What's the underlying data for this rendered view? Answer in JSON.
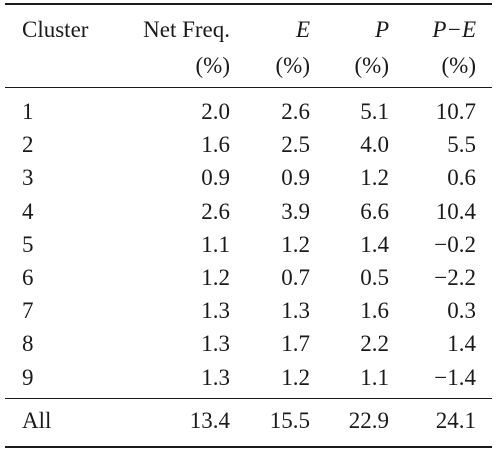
{
  "table": {
    "header_row1": [
      "Cluster",
      "Net Freq.",
      "E",
      "P",
      "P−E"
    ],
    "header_row2": [
      "",
      "(%)",
      "(%)",
      "(%)",
      "(%)"
    ],
    "rows": [
      [
        "1",
        "2.0",
        "2.6",
        "5.1",
        "10.7"
      ],
      [
        "2",
        "1.6",
        "2.5",
        "4.0",
        "5.5"
      ],
      [
        "3",
        "0.9",
        "0.9",
        "1.2",
        "0.6"
      ],
      [
        "4",
        "2.6",
        "3.9",
        "6.6",
        "10.4"
      ],
      [
        "5",
        "1.1",
        "1.2",
        "1.4",
        "−0.2"
      ],
      [
        "6",
        "1.2",
        "0.7",
        "0.5",
        "−2.2"
      ],
      [
        "7",
        "1.3",
        "1.3",
        "1.6",
        "0.3"
      ],
      [
        "8",
        "1.3",
        "1.7",
        "2.2",
        "1.4"
      ],
      [
        "9",
        "1.3",
        "1.2",
        "1.1",
        "−1.4"
      ]
    ],
    "total_row": [
      "All",
      "13.4",
      "15.5",
      "22.9",
      "24.1"
    ]
  }
}
